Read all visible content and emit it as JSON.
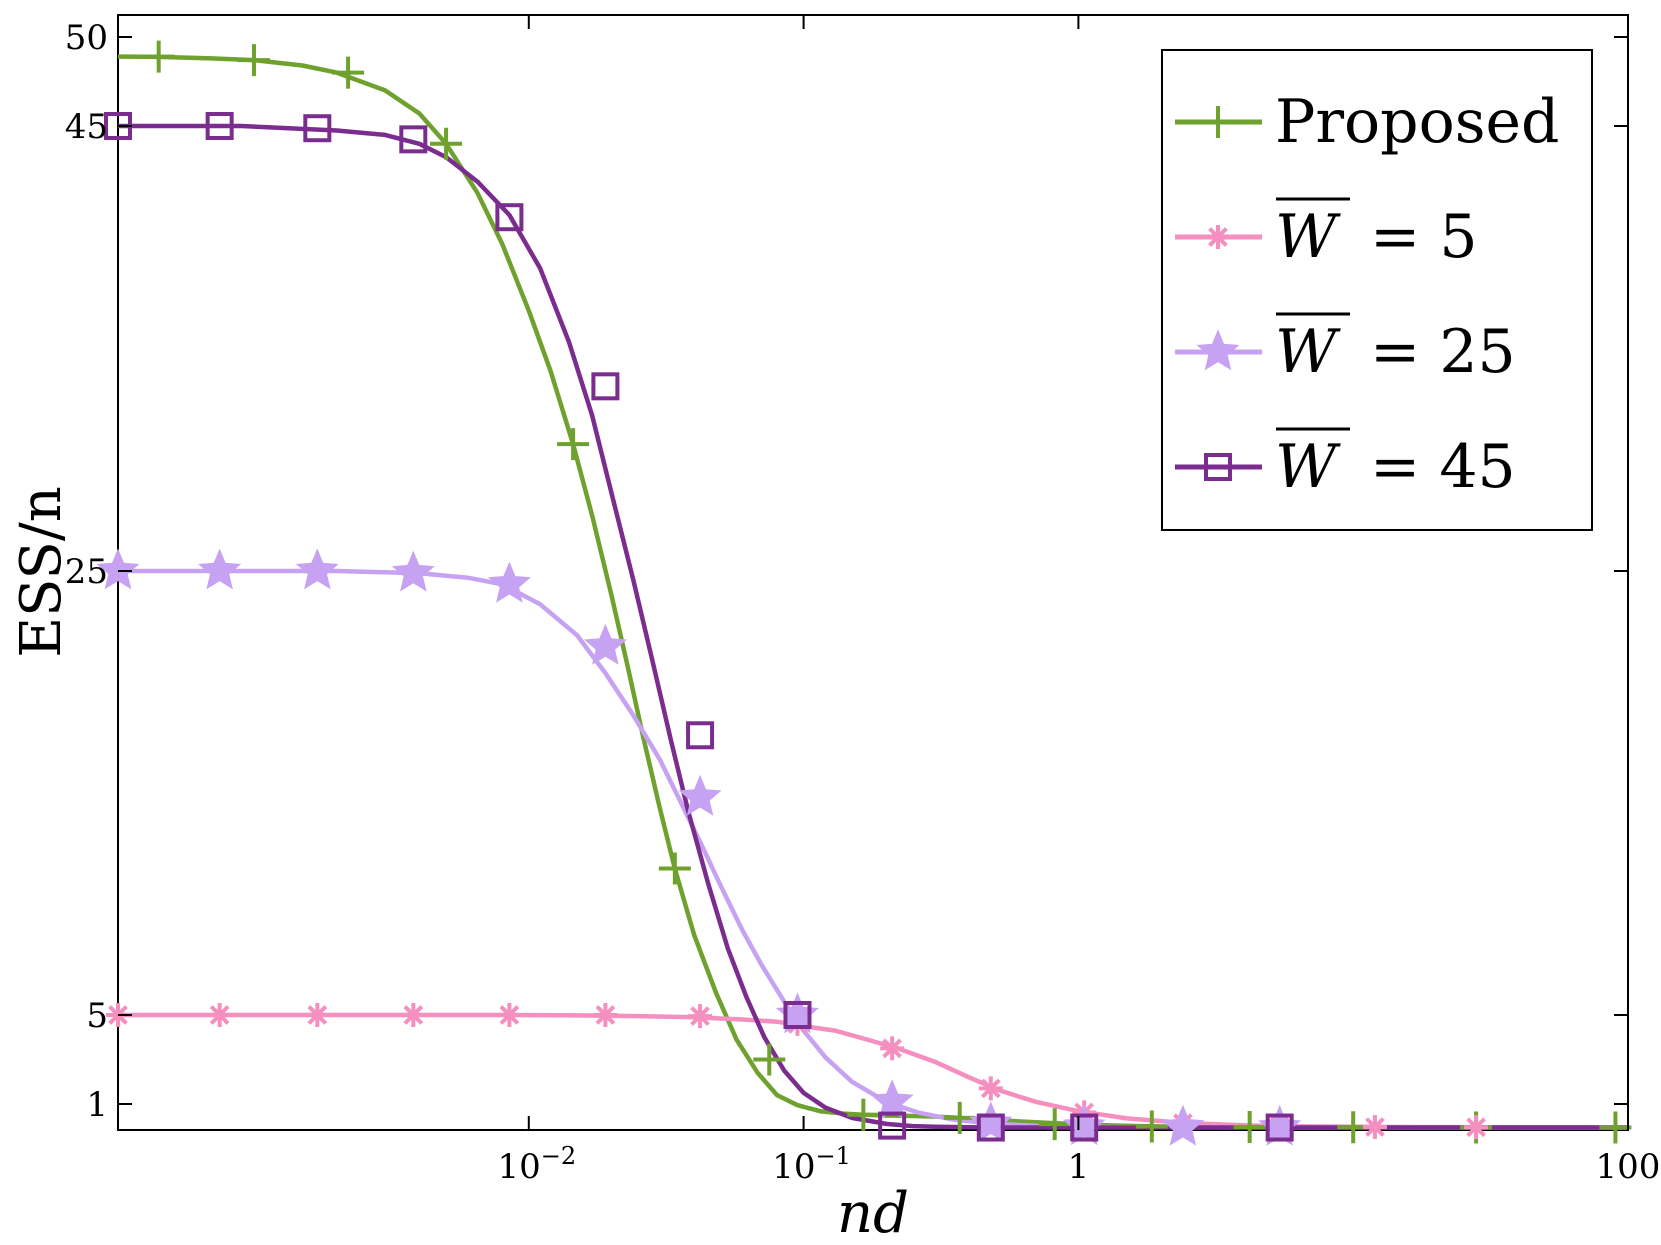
{
  "chart_data": {
    "type": "line",
    "title": "",
    "xlabel": "nd",
    "ylabel": "ESS/n",
    "xscale": "log",
    "xlim": [
      0.00032,
      100
    ],
    "ylim": [
      0,
      50
    ],
    "grid": false,
    "legend_position": "top-right",
    "xticks": [
      {
        "value": 0.01,
        "label": "10",
        "exponent": "−2"
      },
      {
        "value": 0.1,
        "label": "10",
        "exponent": "−1"
      },
      {
        "value": 1,
        "label": "1",
        "exponent": ""
      },
      {
        "value": 100,
        "label": "100",
        "exponent": ""
      }
    ],
    "yticks": [
      {
        "value": 1,
        "label": "1"
      },
      {
        "value": 5,
        "label": "5"
      },
      {
        "value": 25,
        "label": "25"
      },
      {
        "value": 45,
        "label": "45"
      },
      {
        "value": 50,
        "label": "50"
      }
    ],
    "series": [
      {
        "name": "Proposed",
        "legend_label": "Proposed",
        "color": "#6fa12e",
        "marker": "plus",
        "x": [
          0.00032,
          0.00045,
          0.0007,
          0.001,
          0.0015,
          0.002,
          0.003,
          0.004,
          0.005,
          0.0065,
          0.008,
          0.01,
          0.012,
          0.0145,
          0.017,
          0.02,
          0.023,
          0.026,
          0.03,
          0.034,
          0.04,
          0.048,
          0.057,
          0.068,
          0.08,
          0.095,
          0.115,
          0.14,
          0.165,
          0.2,
          0.25,
          0.3,
          0.37,
          0.45,
          0.55,
          0.7,
          0.85,
          1.0,
          1.3,
          1.7,
          2.2,
          3,
          4.5,
          7,
          10,
          20,
          40,
          100
        ],
        "y": [
          48.9,
          48.88,
          48.8,
          48.7,
          48.4,
          48.0,
          47.0,
          45.7,
          44.2,
          42.0,
          39.7,
          36.7,
          34.0,
          30.7,
          27.5,
          23.9,
          20.6,
          17.6,
          14.3,
          11.6,
          8.6,
          6.0,
          3.9,
          2.4,
          1.4,
          0.95,
          0.7,
          0.6,
          0.55,
          0.52,
          0.5,
          0.48,
          0.42,
          0.36,
          0.3,
          0.24,
          0.19,
          0.15,
          0.11,
          0.08,
          0.06,
          0.05,
          0.04,
          0.03,
          0.03,
          0.02,
          0.02,
          0.02
        ],
        "markers": {
          "x": [
            0.00045,
            0.001,
            0.0022,
            0.005,
            0.0145,
            0.034,
            0.075,
            0.165,
            0.37,
            0.82,
            1.85,
            4.2,
            10,
            28,
            90
          ],
          "y": [
            48.9,
            48.7,
            48.0,
            44.2,
            30.7,
            11.6,
            3.0,
            0.55,
            0.42,
            0.16,
            0.06,
            0.04,
            0.03,
            0.02,
            0.02
          ]
        }
      },
      {
        "name": "W̄ = 5",
        "legend_label": "= 5",
        "color": "#f48fbf",
        "marker": "asterisk",
        "x": [
          0.00032,
          0.0009,
          0.002,
          0.004,
          0.008,
          0.015,
          0.025,
          0.04,
          0.06,
          0.08,
          0.1,
          0.13,
          0.17,
          0.22,
          0.3,
          0.4,
          0.52,
          0.7,
          1.0,
          1.5,
          2.5,
          5,
          10,
          30,
          100
        ],
        "y": [
          5.0,
          5.0,
          5.0,
          5.0,
          5.0,
          4.98,
          4.95,
          4.9,
          4.8,
          4.7,
          4.5,
          4.3,
          3.9,
          3.5,
          2.9,
          2.2,
          1.6,
          1.1,
          0.7,
          0.4,
          0.2,
          0.08,
          0.05,
          0.03,
          0.02
        ],
        "markers": {
          "x": [
            0.00032,
            0.00075,
            0.0017,
            0.0038,
            0.0085,
            0.019,
            0.042,
            0.095,
            0.21,
            0.48,
            1.05,
            2.4,
            5.4,
            12,
            28
          ],
          "y": [
            5.0,
            5.0,
            5.0,
            5.0,
            5.0,
            5.0,
            4.95,
            4.6,
            3.5,
            1.7,
            0.65,
            0.2,
            0.08,
            0.04,
            0.03
          ]
        }
      },
      {
        "name": "W̄ = 25",
        "legend_label": "= 25",
        "color": "#c8a2f2",
        "marker": "star",
        "x": [
          0.00032,
          0.0009,
          0.002,
          0.004,
          0.006,
          0.008,
          0.011,
          0.015,
          0.019,
          0.024,
          0.03,
          0.036,
          0.042,
          0.05,
          0.06,
          0.07,
          0.085,
          0.1,
          0.12,
          0.15,
          0.2,
          0.26,
          0.35,
          0.5,
          0.75,
          1.0,
          2,
          5,
          10,
          30,
          100
        ],
        "y": [
          25.0,
          25.0,
          25.0,
          24.9,
          24.7,
          24.4,
          23.5,
          22.1,
          20.4,
          18.5,
          16.5,
          14.5,
          12.8,
          10.8,
          8.8,
          7.3,
          5.6,
          4.3,
          3.1,
          2.0,
          1.1,
          0.65,
          0.35,
          0.17,
          0.08,
          0.05,
          0.03,
          0.02,
          0.02,
          0.02,
          0.02
        ],
        "markers": {
          "x": [
            0.00032,
            0.00075,
            0.0017,
            0.0038,
            0.0085,
            0.019,
            0.042,
            0.095,
            0.21,
            0.48,
            1.05,
            2.4,
            5.4
          ],
          "y": [
            25.0,
            25.0,
            25.0,
            24.9,
            24.4,
            21.6,
            14.8,
            5.0,
            1.1,
            0.17,
            0.05,
            0.03,
            0.02
          ]
        }
      },
      {
        "name": "W̄ = 45",
        "legend_label": "= 45",
        "color": "#7b2c8f",
        "marker": "square",
        "x": [
          0.00032,
          0.0009,
          0.002,
          0.003,
          0.004,
          0.005,
          0.0065,
          0.0085,
          0.011,
          0.014,
          0.017,
          0.02,
          0.024,
          0.028,
          0.033,
          0.038,
          0.045,
          0.053,
          0.062,
          0.072,
          0.085,
          0.1,
          0.12,
          0.15,
          0.2,
          0.25,
          0.3,
          0.4,
          0.5,
          0.7,
          1.0,
          2,
          5,
          10,
          30,
          100
        ],
        "y": [
          45.0,
          45.0,
          44.8,
          44.6,
          44.2,
          43.6,
          42.5,
          41.0,
          38.6,
          35.3,
          32.0,
          28.5,
          24.6,
          21.1,
          17.3,
          14.2,
          10.9,
          8.0,
          5.8,
          4.0,
          2.5,
          1.5,
          0.85,
          0.42,
          0.17,
          0.08,
          0.05,
          0.03,
          0.02,
          0.02,
          0.02,
          0.02,
          0.02,
          0.02,
          0.02,
          0.02
        ],
        "markers": {
          "x": [
            0.00032,
            0.00075,
            0.0017,
            0.0038,
            0.0085,
            0.019,
            0.042,
            0.095,
            0.21,
            0.48,
            1.05,
            5.4
          ],
          "y": [
            45.0,
            45.0,
            44.9,
            44.4,
            40.9,
            33.3,
            17.6,
            5.0,
            0.1,
            0.02,
            0.02,
            0.02
          ]
        }
      }
    ],
    "legend_symbol": "W"
  }
}
